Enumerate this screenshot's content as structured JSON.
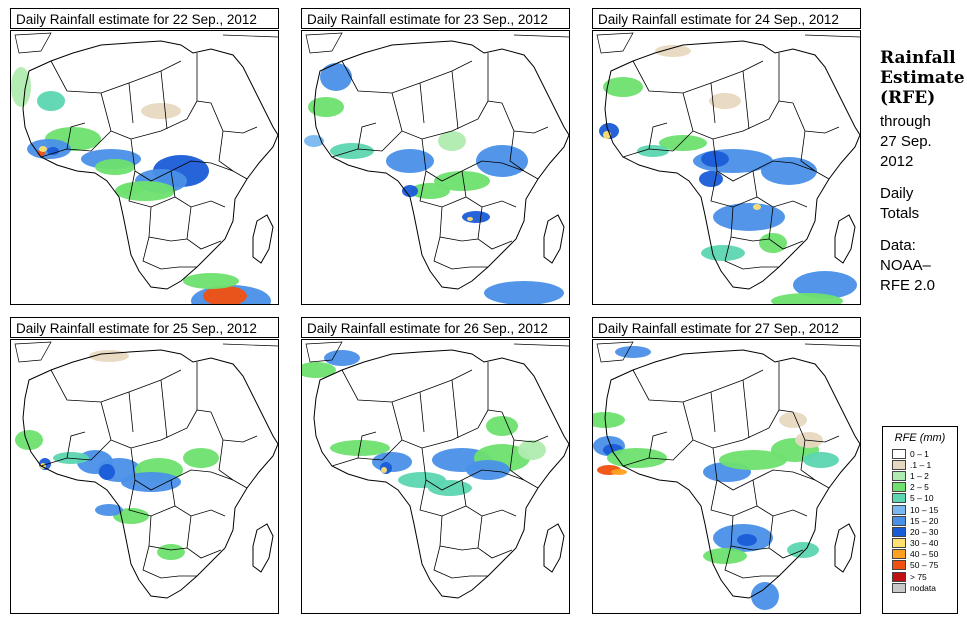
{
  "panels": [
    {
      "title": "Daily Rainfall estimate for  22 Sep., 2012"
    },
    {
      "title": "Daily Rainfall estimate for  23 Sep., 2012"
    },
    {
      "title": "Daily Rainfall estimate for  24 Sep., 2012"
    },
    {
      "title": "Daily Rainfall estimate for  25 Sep., 2012"
    },
    {
      "title": "Daily Rainfall estimate for  26 Sep., 2012"
    },
    {
      "title": "Daily Rainfall estimate for  27 Sep., 2012"
    }
  ],
  "side": {
    "title_line1": "Rainfall",
    "title_line2": "Estimate",
    "title_line3": "(RFE)",
    "through": "through",
    "date_line1": "27 Sep.",
    "date_line2": "2012",
    "daily": "Daily",
    "totals": "Totals",
    "data_label": "Data:",
    "source_line1": "NOAA–",
    "source_line2": "RFE 2.0"
  },
  "legend": {
    "title": "RFE (mm)",
    "items": [
      {
        "label": "0 – 1",
        "color": "#ffffff"
      },
      {
        "label": ".1 – 1",
        "color": "#e8d8c0"
      },
      {
        "label": "1 – 2",
        "color": "#b0ecb0"
      },
      {
        "label": "2 – 5",
        "color": "#6ee06e"
      },
      {
        "label": "5 – 10",
        "color": "#5cd6b0"
      },
      {
        "label": "10 – 15",
        "color": "#7ab8f0"
      },
      {
        "label": "15 – 20",
        "color": "#4a90e8"
      },
      {
        "label": "20 – 30",
        "color": "#1a5cd8"
      },
      {
        "label": "30 – 40",
        "color": "#ffe070"
      },
      {
        "label": "40 – 50",
        "color": "#ffa020"
      },
      {
        "label": "50 – 75",
        "color": "#f05010"
      },
      {
        "label": "> 75",
        "color": "#c01010"
      },
      {
        "label": "nodata",
        "color": "#c8c8c8"
      }
    ]
  }
}
